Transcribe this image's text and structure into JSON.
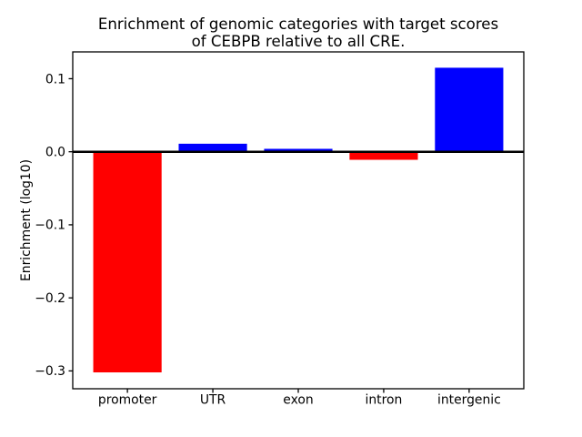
{
  "chart_data": {
    "type": "bar",
    "title": "Enrichment of genomic categories with target scores of CEBPB relative to all CRE.",
    "title_line1": "Enrichment of genomic categories with target scores",
    "title_line2": "of CEBPB relative to all CRE.",
    "xlabel": "",
    "ylabel": "Enrichment (log10)",
    "categories": [
      "promoter",
      "UTR",
      "exon",
      "intron",
      "intergenic"
    ],
    "values": [
      -0.302,
      0.011,
      0.004,
      -0.011,
      0.115
    ],
    "bar_colors": [
      "#ff0000",
      "#0000ff",
      "#0000ff",
      "#ff0000",
      "#0000ff"
    ],
    "positive_color": "#0000ff",
    "negative_color": "#ff0000",
    "bar_width": 0.8,
    "xlim": [
      -0.64,
      4.64
    ],
    "ylim": [
      -0.3244,
      0.1367
    ],
    "yticks": [
      {
        "value": 0.1,
        "label": "0.1"
      },
      {
        "value": 0.0,
        "label": "0.0"
      },
      {
        "value": -0.1,
        "label": "−0.1"
      },
      {
        "value": -0.2,
        "label": "−0.2"
      },
      {
        "value": -0.3,
        "label": "−0.3"
      }
    ],
    "zero_line": true,
    "grid": false,
    "legend": false,
    "background_color": "#ffffff",
    "axis_color": "#000000"
  }
}
